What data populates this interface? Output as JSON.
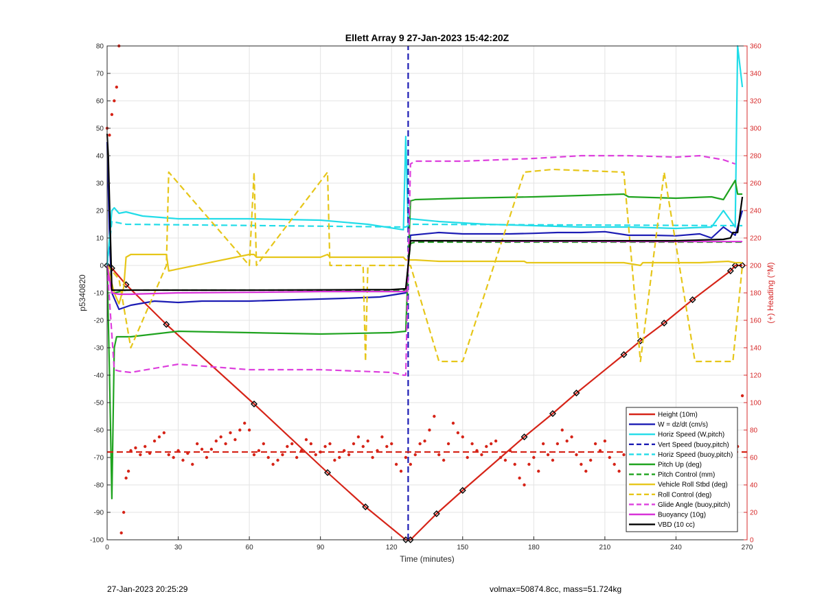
{
  "chart_data": {
    "type": "line",
    "title": "Ellett Array 9 27-Jan-2023 15:42:20Z",
    "xlabel": "Time (minutes)",
    "ylabel": "p5340820",
    "ylabel_right": "(+) Heading (°M)",
    "xlim": [
      0,
      270
    ],
    "ylim": [
      -100,
      80
    ],
    "ylim_right": [
      0,
      360
    ],
    "xticks": [
      0,
      30,
      60,
      90,
      120,
      150,
      180,
      210,
      240,
      270
    ],
    "yticks": [
      -100,
      -90,
      -80,
      -70,
      -60,
      -50,
      -40,
      -30,
      -20,
      -10,
      0,
      10,
      20,
      30,
      40,
      50,
      60,
      70,
      80
    ],
    "yticks_right": [
      0,
      20,
      40,
      60,
      80,
      100,
      120,
      140,
      160,
      180,
      200,
      220,
      240,
      260,
      280,
      300,
      320,
      340,
      360
    ],
    "grid": true,
    "legend_position": "bottom-right",
    "vline_x": 127,
    "colors": {
      "height": "#d62418",
      "w": "#1c1cb4",
      "horiz_speed": "#22dce8",
      "vert_speed": "#1c1cb4",
      "pitch": "#1fa31f",
      "roll": "#e6c619",
      "glide": "#dd3fdd",
      "buoyancy": "#d832d8",
      "vbd": "#000000",
      "heading": "#d62418"
    },
    "series": [
      {
        "name": "Height (10m)",
        "style": "solid",
        "color": "#d62418",
        "x": [
          0,
          2,
          8,
          25,
          62,
          93,
          109,
          126,
          128,
          139,
          150,
          176,
          188,
          198,
          218,
          225,
          235,
          247,
          263,
          265,
          268
        ],
        "y": [
          0,
          -1,
          -7,
          -21.5,
          -50.5,
          -75.5,
          -88,
          -100,
          -100,
          -90.5,
          -82,
          -62.5,
          -54,
          -46.5,
          -32.5,
          -27.5,
          -21,
          -12.5,
          -2,
          0,
          0
        ]
      },
      {
        "name": "W = dz/dt (cm/s)",
        "style": "solid",
        "color": "#1c1cb4",
        "x": [
          0,
          1,
          2,
          5,
          10,
          20,
          30,
          40,
          60,
          80,
          100,
          115,
          126,
          127,
          128,
          140,
          150,
          160,
          170,
          180,
          190,
          200,
          210,
          220,
          230,
          240,
          250,
          255,
          260,
          265,
          268
        ],
        "y": [
          45,
          10,
          -10,
          -16,
          -14.5,
          -13,
          -13.5,
          -13,
          -13,
          -12.5,
          -12,
          -11.5,
          -10,
          0,
          11,
          12,
          11.5,
          11.5,
          11.5,
          11.7,
          12,
          12,
          12.3,
          11,
          11,
          10.8,
          11.5,
          10,
          14,
          11,
          20
        ]
      },
      {
        "name": "Horiz Speed (W,pitch)",
        "style": "solid",
        "color": "#22dce8",
        "x": [
          0,
          2,
          3,
          5,
          8,
          15,
          30,
          60,
          90,
          110,
          125,
          126,
          127,
          128,
          140,
          160,
          180,
          200,
          220,
          240,
          255,
          260,
          265,
          266,
          268
        ],
        "y": [
          0,
          20,
          21,
          19,
          19.5,
          18,
          17,
          17,
          16.5,
          15,
          13,
          47,
          15,
          17,
          16,
          15,
          14.5,
          14,
          14,
          13.5,
          14,
          20,
          14,
          80,
          65
        ]
      },
      {
        "name": "Vert Speed (buoy,pitch)",
        "style": "dashed",
        "color": "#1c1cb4",
        "x": [
          127,
          127
        ],
        "y": [
          -100,
          80
        ]
      },
      {
        "name": "Horiz Speed (buoy,pitch)",
        "style": "dashed",
        "color": "#22dce8",
        "x": [
          0,
          2,
          8,
          126,
          128,
          268
        ],
        "y": [
          0,
          16,
          15,
          14,
          15,
          14.5
        ]
      },
      {
        "name": "Pitch Up (deg)",
        "style": "solid",
        "color": "#1fa31f",
        "x": [
          0,
          1,
          2,
          3,
          4,
          5,
          10,
          20,
          30,
          60,
          90,
          120,
          126,
          127,
          128,
          130,
          150,
          180,
          200,
          218,
          220,
          240,
          255,
          260,
          265,
          266,
          268
        ],
        "y": [
          0,
          -40,
          -85,
          -30,
          -26,
          -26,
          -26,
          -25,
          -24,
          -24.5,
          -25,
          -24.5,
          -24,
          0,
          23.5,
          24,
          24.5,
          25,
          25.5,
          26,
          25,
          24.5,
          25,
          24,
          31,
          26,
          26
        ]
      },
      {
        "name": "Pitch Control (mm)",
        "style": "dashed",
        "color": "#1fa31f",
        "x": [
          0,
          3,
          8,
          126,
          128,
          130,
          268
        ],
        "y": [
          0,
          -10,
          -9,
          -9,
          8,
          8.5,
          8.5
        ]
      },
      {
        "name": "Vehicle Roll Stbd (deg)",
        "style": "solid",
        "color": "#e6c619",
        "x": [
          0,
          3,
          5,
          7,
          8,
          10,
          20,
          25,
          26,
          60,
          62,
          63,
          90,
          93,
          94,
          110,
          125,
          126,
          128,
          130,
          140,
          150,
          175,
          176,
          177,
          188,
          200,
          218,
          225,
          226,
          235,
          240,
          250,
          262,
          265,
          268
        ],
        "y": [
          0,
          -10,
          -14,
          -8,
          3,
          4,
          4,
          4,
          -2,
          4,
          4,
          3,
          3,
          4,
          3,
          3,
          3,
          2,
          2,
          2,
          1.5,
          1.5,
          1.5,
          1.5,
          1,
          1,
          1,
          1,
          0,
          1,
          1,
          1,
          1,
          1.5,
          1,
          1
        ]
      },
      {
        "name": "Roll Control (deg)",
        "style": "dashed",
        "color": "#e6c619",
        "x": [
          0,
          5,
          10,
          25,
          26,
          60,
          62,
          63,
          93,
          94,
          108,
          109,
          110,
          126,
          128,
          140,
          150,
          176,
          188,
          218,
          225,
          235,
          248,
          264,
          268
        ],
        "y": [
          0,
          -5,
          -30,
          0,
          34,
          0,
          34,
          0,
          34,
          0,
          0,
          -35,
          0,
          0,
          0,
          -35,
          -35,
          34,
          35,
          34,
          -35,
          34,
          -35,
          -35,
          0
        ]
      },
      {
        "name": "Glide Angle (buoy,pitch)",
        "style": "dashed",
        "color": "#dd3fdd",
        "x": [
          0,
          3,
          5,
          10,
          30,
          60,
          90,
          120,
          125,
          126,
          128,
          130,
          150,
          180,
          200,
          220,
          240,
          250,
          260,
          265
        ],
        "y": [
          0,
          -38,
          -38.5,
          -39,
          -36,
          -38,
          -38,
          -39,
          -40,
          -40,
          37,
          38,
          38,
          39,
          40,
          40,
          39.5,
          40,
          38.5,
          37
        ]
      },
      {
        "name": "Buoyancy (10g)",
        "style": "solid",
        "color": "#d832d8",
        "x": [
          0,
          2,
          5,
          10,
          30,
          60,
          90,
          120,
          126,
          128,
          140,
          170,
          200,
          230,
          260,
          265,
          268
        ],
        "y": [
          0,
          -10,
          -10.5,
          -10.5,
          -10,
          -9.8,
          -9.5,
          -9.5,
          -9.5,
          9,
          9,
          8.8,
          8.8,
          8.7,
          8.7,
          8.7,
          8.7
        ]
      },
      {
        "name": "VBD (10 cc)",
        "style": "solid",
        "color": "#000000",
        "x": [
          0,
          0.5,
          1,
          2,
          3,
          5,
          10,
          60,
          120,
          126,
          127,
          128,
          130,
          170,
          200,
          240,
          260,
          263,
          264,
          266,
          268
        ],
        "y": [
          48,
          40,
          23,
          -9,
          -9,
          -9,
          -9,
          -9,
          -8.8,
          -8.5,
          0,
          9,
          9,
          9,
          9,
          9,
          9.5,
          10,
          12,
          12,
          25
        ]
      },
      {
        "name": "Heading",
        "style": "dots",
        "axis": "right",
        "color": "#d62418",
        "x": [
          0,
          1,
          2,
          3,
          4,
          5,
          6,
          7,
          8,
          9,
          10,
          12,
          14,
          16,
          18,
          20,
          22,
          24,
          26,
          28,
          30,
          32,
          34,
          36,
          38,
          40,
          42,
          44,
          46,
          48,
          50,
          52,
          54,
          56,
          58,
          60,
          62,
          64,
          66,
          68,
          70,
          72,
          74,
          76,
          78,
          80,
          82,
          84,
          86,
          88,
          90,
          92,
          94,
          96,
          98,
          100,
          102,
          104,
          106,
          108,
          110,
          112,
          114,
          116,
          118,
          120,
          122,
          124,
          126,
          128,
          130,
          132,
          134,
          136,
          138,
          140,
          142,
          144,
          146,
          148,
          150,
          152,
          154,
          156,
          158,
          160,
          162,
          164,
          166,
          168,
          170,
          172,
          174,
          176,
          178,
          180,
          182,
          184,
          186,
          188,
          190,
          192,
          194,
          196,
          198,
          200,
          202,
          204,
          206,
          208,
          210,
          212,
          214,
          216,
          218,
          220,
          222,
          224,
          226,
          228,
          230,
          232,
          234,
          236,
          238,
          240,
          242,
          244,
          246,
          248,
          250,
          252,
          254,
          256,
          258,
          260,
          262,
          264,
          266,
          268
        ],
        "y": [
          300,
          295,
          310,
          320,
          330,
          360,
          5,
          20,
          45,
          50,
          65,
          67,
          62,
          68,
          63,
          72,
          75,
          78,
          62,
          60,
          65,
          58,
          63,
          55,
          70,
          66,
          60,
          66,
          72,
          75,
          70,
          78,
          73,
          80,
          85,
          80,
          62,
          65,
          70,
          60,
          55,
          58,
          62,
          68,
          70,
          60,
          65,
          73,
          70,
          62,
          64,
          68,
          70,
          58,
          60,
          65,
          62,
          70,
          75,
          68,
          72,
          60,
          65,
          75,
          68,
          70,
          55,
          50,
          60,
          55,
          62,
          70,
          72,
          80,
          90,
          62,
          58,
          70,
          85,
          78,
          75,
          60,
          70,
          65,
          62,
          68,
          70,
          72,
          60,
          58,
          65,
          55,
          45,
          40,
          55,
          60,
          50,
          70,
          62,
          58,
          70,
          80,
          72,
          75,
          62,
          55,
          50,
          58,
          70,
          65,
          72,
          60,
          55,
          50,
          62,
          58,
          65,
          60,
          62,
          55,
          68,
          65,
          70,
          72,
          55,
          60,
          50,
          58,
          75,
          70,
          62,
          65,
          70,
          60,
          58,
          62,
          70,
          50,
          68,
          105
        ]
      },
      {
        "name": "Heading mean",
        "style": "dashed",
        "axis": "right",
        "color": "#d62418",
        "x": [
          0,
          270
        ],
        "y": [
          64,
          64
        ]
      }
    ]
  },
  "legend": {
    "entries": [
      {
        "label": "Height (10m)",
        "color": "#d62418",
        "style": "solid"
      },
      {
        "label": "W = dz/dt (cm/s)",
        "color": "#1c1cb4",
        "style": "solid"
      },
      {
        "label": "Horiz Speed (W,pitch)",
        "color": "#22dce8",
        "style": "solid"
      },
      {
        "label": "Vert Speed (buoy,pitch)",
        "color": "#1c1cb4",
        "style": "dashed"
      },
      {
        "label": "Horiz Speed (buoy,pitch)",
        "color": "#22dce8",
        "style": "dashed"
      },
      {
        "label": "Pitch Up (deg)",
        "color": "#1fa31f",
        "style": "solid"
      },
      {
        "label": "Pitch Control (mm)",
        "color": "#1fa31f",
        "style": "dashed"
      },
      {
        "label": "Vehicle Roll Stbd (deg)",
        "color": "#e6c619",
        "style": "solid"
      },
      {
        "label": "Roll Control (deg)",
        "color": "#e6c619",
        "style": "dashed"
      },
      {
        "label": "Glide Angle (buoy,pitch)",
        "color": "#dd3fdd",
        "style": "dashed"
      },
      {
        "label": "Buoyancy (10g)",
        "color": "#d832d8",
        "style": "solid"
      },
      {
        "label": "VBD (10 cc)",
        "color": "#000000",
        "style": "solid"
      }
    ]
  },
  "footer": {
    "left": "27-Jan-2023 20:25:29",
    "right": "volmax=50874.8cc, mass=51.724kg"
  }
}
